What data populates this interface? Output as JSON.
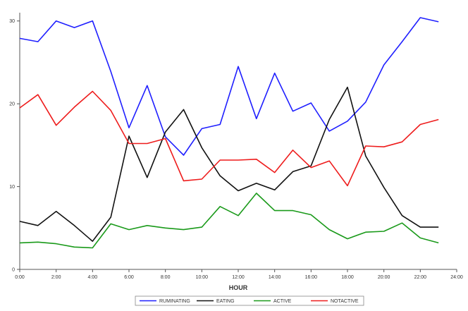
{
  "chart_data": {
    "type": "line",
    "title": "",
    "xlabel": "HOUR",
    "ylabel": "",
    "xlim": [
      0,
      24
    ],
    "ylim": [
      0,
      31
    ],
    "x_ticks": [
      0,
      2,
      4,
      6,
      8,
      10,
      12,
      14,
      16,
      18,
      20,
      22,
      24
    ],
    "x_tick_labels": [
      "0:00",
      "2:00",
      "4:00",
      "6:00",
      "8:00",
      "10:00",
      "12:00",
      "14:00",
      "16:00",
      "18:00",
      "20:00",
      "22:00",
      "24:00"
    ],
    "y_ticks": [
      0,
      10,
      20,
      30
    ],
    "y_tick_labels": [
      "0",
      "10",
      "20",
      "30"
    ],
    "grid": false,
    "legend_position": "bottom",
    "x": [
      0,
      1,
      2,
      3,
      4,
      5,
      6,
      7,
      8,
      9,
      10,
      11,
      12,
      13,
      14,
      15,
      16,
      17,
      18,
      19,
      20,
      21,
      22,
      23
    ],
    "series": [
      {
        "name": "RUMINATING",
        "color": "#1f1fff",
        "values": [
          27.9,
          27.5,
          30.0,
          29.2,
          30.0,
          23.9,
          17.1,
          22.2,
          16.0,
          13.8,
          17.0,
          17.5,
          24.5,
          18.2,
          23.7,
          19.1,
          20.1,
          16.7,
          17.9,
          20.2,
          24.7,
          27.5,
          30.4,
          29.9
        ]
      },
      {
        "name": "EATING",
        "color": "#111111",
        "values": [
          5.8,
          5.3,
          7.0,
          5.3,
          3.4,
          6.3,
          16.1,
          11.1,
          16.6,
          19.3,
          14.7,
          11.3,
          9.5,
          10.4,
          9.6,
          11.8,
          12.5,
          18.1,
          22.0,
          13.7,
          9.9,
          6.5,
          5.1,
          5.1
        ]
      },
      {
        "name": "ACTIVE",
        "color": "#1a9a1a",
        "values": [
          3.2,
          3.3,
          3.1,
          2.7,
          2.6,
          5.5,
          4.8,
          5.3,
          5.0,
          4.8,
          5.1,
          7.6,
          6.5,
          9.2,
          7.1,
          7.1,
          6.6,
          4.8,
          3.7,
          4.5,
          4.6,
          5.6,
          3.8,
          3.2
        ]
      },
      {
        "name": "NOTACTIVE",
        "color": "#ee1c1c",
        "values": [
          19.5,
          21.1,
          17.4,
          19.6,
          21.5,
          19.2,
          15.2,
          15.2,
          15.8,
          10.7,
          10.9,
          13.2,
          13.2,
          13.3,
          11.7,
          14.4,
          12.3,
          13.1,
          10.1,
          14.9,
          14.8,
          15.4,
          17.5,
          18.1
        ]
      }
    ]
  }
}
